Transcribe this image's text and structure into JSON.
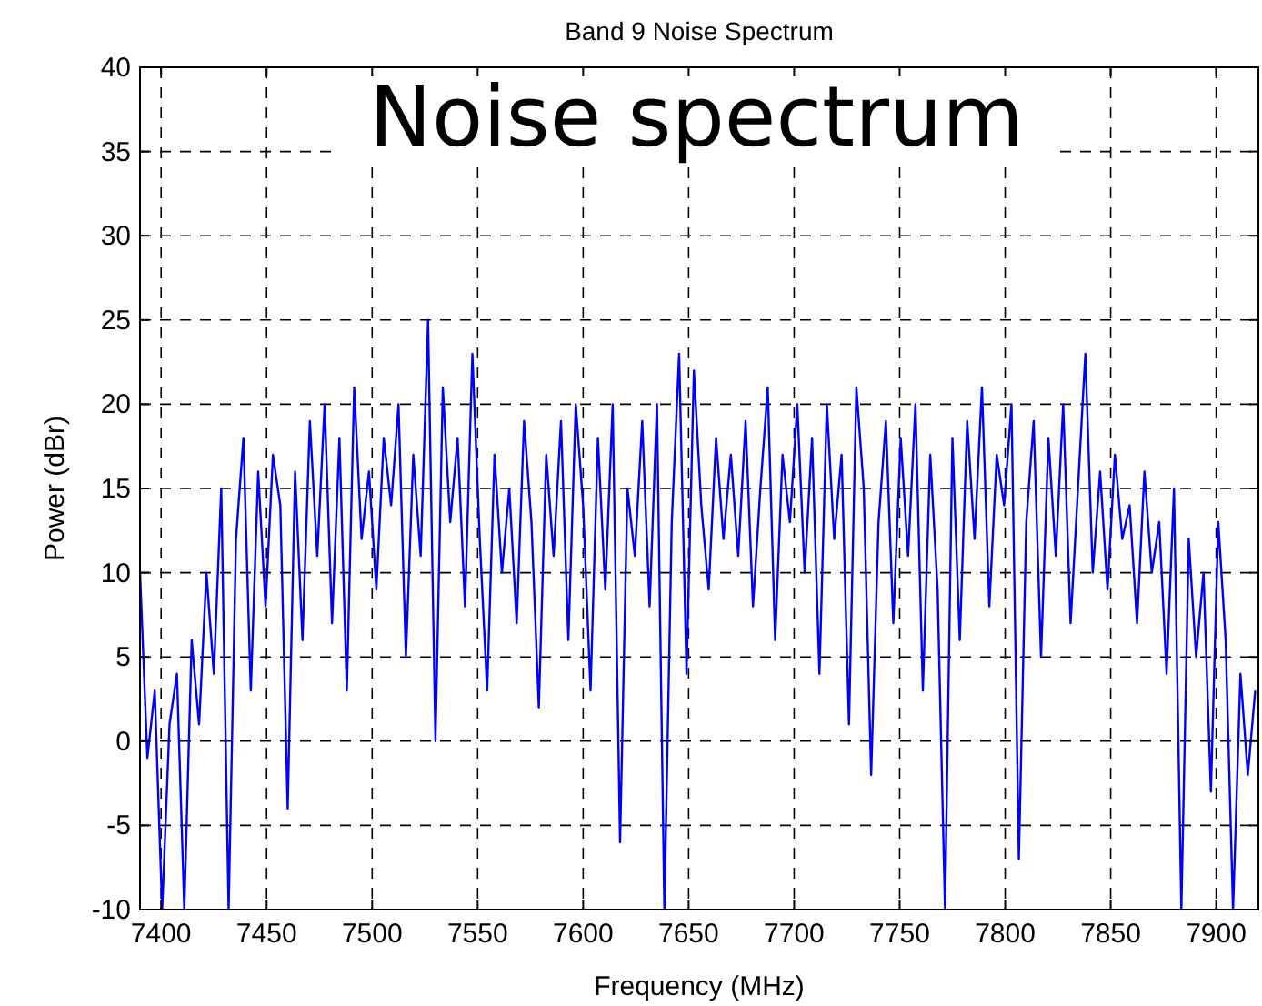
{
  "chart_data": {
    "type": "line",
    "title": "Band 9 Noise Spectrum",
    "xlabel": "Frequency (MHz)",
    "ylabel": "Power (dBr)",
    "annotations": [
      "Noise spectrum"
    ],
    "xlim": [
      7390,
      7920
    ],
    "xticks": [
      7400,
      7450,
      7500,
      7550,
      7600,
      7650,
      7700,
      7750,
      7800,
      7850,
      7900
    ],
    "ylim": [
      -10,
      40
    ],
    "yticks": [
      -10,
      -5,
      0,
      5,
      10,
      15,
      20,
      25,
      30,
      35,
      40
    ],
    "grid": true,
    "marker": "none",
    "line_style": "solid",
    "x": [
      7390,
      7393.5,
      7397,
      7400.5,
      7404,
      7407.5,
      7411,
      7414.5,
      7418,
      7421.5,
      7425,
      7428.5,
      7432,
      7435.5,
      7439,
      7442.5,
      7446,
      7449.5,
      7453,
      7456.5,
      7460,
      7463.5,
      7467,
      7470.5,
      7474,
      7477.5,
      7481,
      7484.5,
      7488,
      7491.5,
      7495,
      7498.5,
      7502,
      7505.5,
      7509,
      7512.5,
      7516,
      7519.5,
      7523,
      7526.5,
      7530,
      7533.5,
      7537,
      7540.5,
      7544,
      7547.5,
      7551,
      7554.5,
      7558,
      7561.5,
      7565,
      7568.5,
      7572,
      7575.5,
      7579,
      7582.5,
      7586,
      7589.5,
      7593,
      7596.5,
      7600,
      7603.5,
      7607,
      7610.5,
      7614,
      7617.5,
      7621,
      7624.5,
      7628,
      7631.5,
      7635,
      7638.5,
      7642,
      7645.5,
      7649,
      7652.5,
      7656,
      7659.5,
      7663,
      7666.5,
      7670,
      7673.5,
      7677,
      7680.5,
      7684,
      7687.5,
      7691,
      7694.5,
      7698,
      7701.5,
      7705,
      7708.5,
      7712,
      7715.5,
      7719,
      7722.5,
      7726,
      7729.5,
      7733,
      7736.5,
      7740,
      7743.5,
      7747,
      7750.5,
      7754,
      7757.5,
      7761,
      7764.5,
      7768,
      7771.5,
      7775,
      7778.5,
      7782,
      7785.5,
      7789,
      7792.5,
      7796,
      7799.5,
      7803,
      7806.5,
      7810,
      7813.5,
      7817,
      7820.5,
      7824,
      7827.5,
      7831,
      7834.5,
      7838,
      7841.5,
      7845,
      7848.5,
      7852,
      7855.5,
      7859,
      7862.5,
      7866,
      7869.5,
      7873,
      7876.5,
      7880,
      7883.5,
      7887,
      7890.5,
      7894,
      7897.5,
      7901,
      7904.5,
      7908,
      7911.5,
      7915,
      7918.5
    ],
    "series": [
      {
        "color": "#0000ff",
        "values": [
          10,
          -1,
          3,
          -10,
          1,
          4,
          -10,
          6,
          1,
          10,
          4,
          15,
          -10,
          12,
          18,
          3,
          16,
          8,
          17,
          14,
          -4,
          16,
          6,
          19,
          11,
          20,
          7,
          18,
          3,
          21,
          12,
          16,
          9,
          18,
          14,
          20,
          5,
          17,
          11,
          25,
          0,
          21,
          13,
          18,
          8,
          23,
          12,
          3,
          17,
          10,
          15,
          7,
          19,
          13,
          2,
          17,
          11,
          19,
          6,
          20,
          14,
          3,
          18,
          9,
          20,
          -6,
          15,
          11,
          19,
          8,
          20,
          -10,
          13,
          23,
          4,
          22,
          14,
          9,
          18,
          12,
          17,
          11,
          19,
          8,
          15,
          21,
          6,
          17,
          13,
          20,
          10,
          18,
          4,
          20,
          12,
          17,
          1,
          21,
          15,
          -2,
          13,
          19,
          7,
          18,
          11,
          20,
          3,
          17,
          9,
          -10,
          18,
          6,
          19,
          12,
          21,
          8,
          17,
          14,
          20,
          -7,
          13,
          19,
          5,
          18,
          11,
          20,
          7,
          15,
          23,
          10,
          16,
          9,
          17,
          12,
          14,
          7,
          16,
          10,
          13,
          4,
          15,
          -10,
          12,
          5,
          10,
          -3,
          13,
          6,
          -10,
          4,
          -2,
          3
        ]
      }
    ]
  }
}
